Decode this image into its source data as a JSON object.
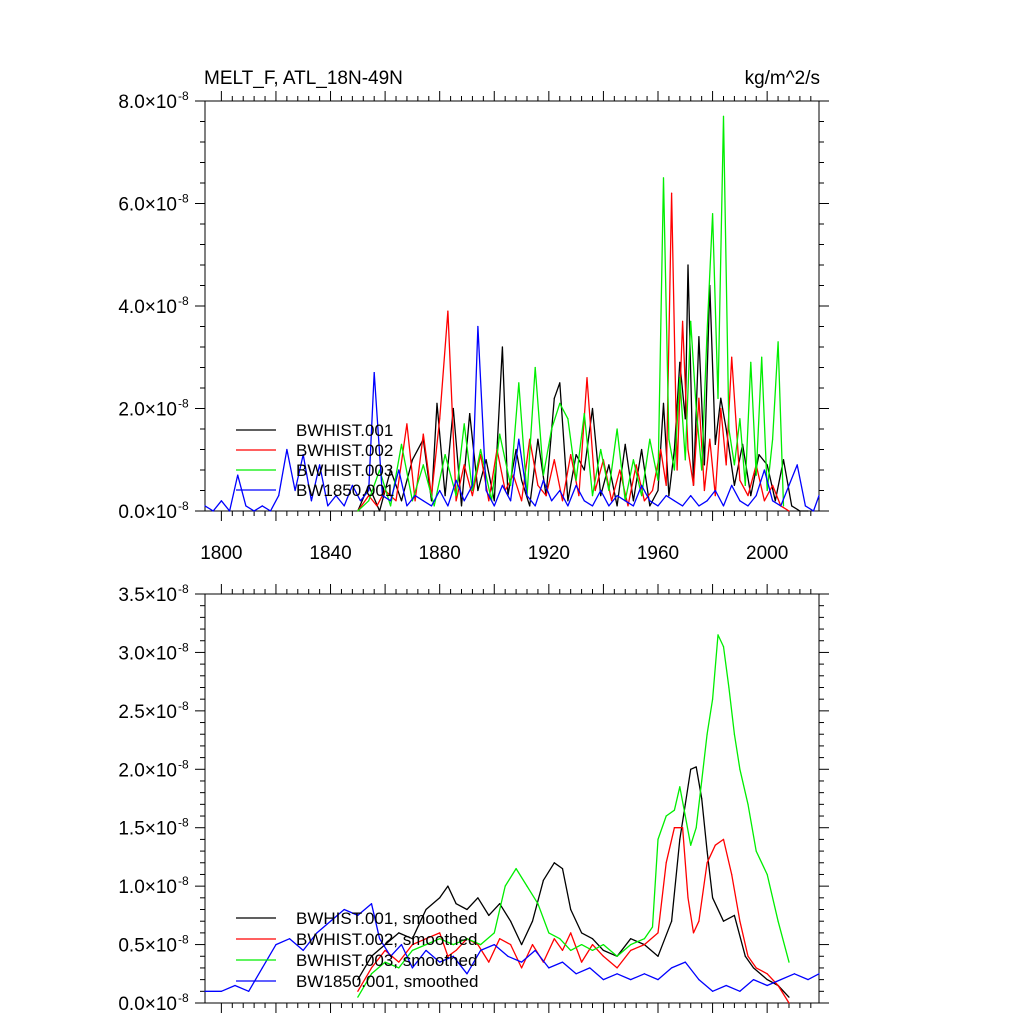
{
  "chart_data": [
    {
      "type": "line",
      "title": "MELT_F, ATL_18N-49N",
      "units": "kg/m^2/s",
      "xlim": [
        1794,
        2019
      ],
      "ylim": [
        0,
        8e-08
      ],
      "x_ticks": [
        1800,
        1840,
        1880,
        1920,
        1960,
        2000
      ],
      "y_ticks": [
        {
          "value": 0.0,
          "label": "0.0",
          "exp": "-8"
        },
        {
          "value": 2e-08,
          "label": "2.0",
          "exp": "-8"
        },
        {
          "value": 4e-08,
          "label": "4.0",
          "exp": "-8"
        },
        {
          "value": 6e-08,
          "label": "6.0",
          "exp": "-8"
        },
        {
          "value": 8e-08,
          "label": "8.0",
          "exp": "-8"
        }
      ],
      "legend_position": "bottom-left",
      "series": [
        {
          "name": "BWHIST.001",
          "color": "#000000",
          "x": [
            1850,
            1854,
            1858,
            1862,
            1866,
            1870,
            1874,
            1877,
            1879,
            1882,
            1885,
            1888,
            1891,
            1894,
            1897,
            1900,
            1903,
            1905,
            1908,
            1910,
            1913,
            1916,
            1919,
            1922,
            1924,
            1927,
            1930,
            1933,
            1936,
            1939,
            1942,
            1945,
            1948,
            1951,
            1954,
            1957,
            1960,
            1962,
            1964,
            1966,
            1968,
            1970,
            1971,
            1973,
            1975,
            1977,
            1979,
            1981,
            1983,
            1985,
            1988,
            1991,
            1994,
            1997,
            2000,
            2003,
            2006,
            2009,
            2012,
            2015
          ],
          "y": [
            0.0,
            5e-09,
            0.0,
            8e-09,
            2e-09,
            1e-08,
            1.4e-08,
            2e-09,
            2.1e-08,
            3e-09,
            2e-08,
            1e-09,
            1.9e-08,
            4e-09,
            1e-08,
            2e-09,
            3.2e-08,
            3e-09,
            1.2e-08,
            6e-09,
            1e-09,
            1.4e-08,
            3e-09,
            2.2e-08,
            2.5e-08,
            2e-09,
            1.1e-08,
            8e-09,
            2e-08,
            3e-09,
            9e-09,
            1e-09,
            1.3e-08,
            2e-09,
            1.2e-08,
            1e-09,
            4e-09,
            2.1e-08,
            3e-09,
            1.2e-08,
            2.9e-08,
            1.8e-08,
            4.8e-08,
            5e-09,
            3.4e-08,
            9e-09,
            4.4e-08,
            1.3e-08,
            2.2e-08,
            1.6e-08,
            5e-09,
            1.3e-08,
            3e-09,
            1.1e-08,
            9e-09,
            2e-09,
            1e-08,
            1e-09,
            0.0,
            0.0
          ]
        },
        {
          "name": "BWHIST.002",
          "color": "#ff0000",
          "x": [
            1850,
            1854,
            1857,
            1860,
            1864,
            1868,
            1871,
            1874,
            1877,
            1880,
            1883,
            1886,
            1889,
            1892,
            1895,
            1898,
            1901,
            1904,
            1907,
            1910,
            1913,
            1916,
            1919,
            1922,
            1925,
            1928,
            1931,
            1934,
            1937,
            1940,
            1943,
            1946,
            1949,
            1952,
            1955,
            1958,
            1961,
            1963,
            1965,
            1967,
            1969,
            1971,
            1973,
            1975,
            1977,
            1979,
            1981,
            1983,
            1985,
            1987,
            1990,
            1993,
            1996,
            1999,
            2002,
            2005,
            2008
          ],
          "y": [
            0.0,
            3e-09,
            1e-09,
            4e-09,
            2e-09,
            1.7e-08,
            2e-09,
            1.5e-08,
            3e-09,
            1.8e-08,
            3.9e-08,
            2e-09,
            9e-09,
            3e-09,
            1.1e-08,
            2e-09,
            1.2e-08,
            4e-09,
            7e-09,
            2e-09,
            1.4e-08,
            5e-09,
            3e-09,
            1e-08,
            2e-09,
            1.1e-08,
            3e-09,
            2.6e-08,
            4e-09,
            1e-08,
            2e-09,
            8e-09,
            1e-09,
            9e-09,
            2e-09,
            4e-09,
            1.2e-08,
            5e-09,
            6.2e-08,
            8e-09,
            3.7e-08,
            1.2e-08,
            5e-09,
            2.2e-08,
            4e-09,
            1.4e-08,
            3e-09,
            2e-08,
            9e-09,
            3e-08,
            6e-09,
            3e-09,
            9e-09,
            2e-09,
            5e-09,
            1e-09,
            0.0
          ]
        },
        {
          "name": "BWHIST.003",
          "color": "#00ee00",
          "x": [
            1850,
            1854,
            1858,
            1862,
            1866,
            1870,
            1874,
            1878,
            1882,
            1886,
            1889,
            1892,
            1895,
            1899,
            1902,
            1906,
            1909,
            1912,
            1915,
            1918,
            1921,
            1924,
            1927,
            1930,
            1933,
            1936,
            1939,
            1942,
            1945,
            1948,
            1951,
            1954,
            1957,
            1960,
            1962,
            1964,
            1966,
            1968,
            1970,
            1972,
            1974,
            1976,
            1978,
            1980,
            1982,
            1984,
            1986,
            1988,
            1990,
            1992,
            1994,
            1996,
            1998,
            2000,
            2002,
            2004,
            2006
          ],
          "y": [
            0.0,
            2e-09,
            8e-09,
            1e-09,
            1.3e-08,
            2e-09,
            9e-09,
            1e-09,
            1.1e-08,
            3e-09,
            1.7e-08,
            4e-09,
            1.2e-08,
            2e-09,
            1.5e-08,
            5e-09,
            2.5e-08,
            3e-09,
            2.8e-08,
            7e-09,
            1.6e-08,
            2.1e-08,
            1.8e-08,
            6e-09,
            1.9e-08,
            3e-09,
            1.2e-08,
            4e-09,
            1.6e-08,
            2e-09,
            1e-08,
            3e-09,
            1.4e-08,
            6e-09,
            6.5e-08,
            1.4e-08,
            8e-09,
            2.6e-08,
            1e-08,
            3.7e-08,
            2e-08,
            8e-09,
            3.5e-08,
            5.8e-08,
            2.2e-08,
            7.7e-08,
            1.6e-08,
            9e-09,
            1.8e-08,
            5e-09,
            2.9e-08,
            7e-09,
            3e-08,
            4e-09,
            1.4e-08,
            3.3e-08,
            1e-09
          ]
        },
        {
          "name": "BW1850.001",
          "color": "#0000ff",
          "x": [
            1794,
            1797,
            1800,
            1803,
            1806,
            1809,
            1812,
            1815,
            1818,
            1821,
            1824,
            1827,
            1830,
            1833,
            1836,
            1839,
            1842,
            1845,
            1848,
            1851,
            1854,
            1856,
            1859,
            1862,
            1865,
            1868,
            1871,
            1874,
            1877,
            1880,
            1883,
            1886,
            1889,
            1892,
            1894,
            1897,
            1900,
            1903,
            1906,
            1909,
            1912,
            1915,
            1918,
            1921,
            1924,
            1927,
            1930,
            1933,
            1936,
            1939,
            1942,
            1945,
            1948,
            1951,
            1954,
            1957,
            1960,
            1963,
            1966,
            1969,
            1972,
            1975,
            1978,
            1981,
            1984,
            1987,
            1990,
            1993,
            1996,
            1999,
            2002,
            2005,
            2008,
            2011,
            2014,
            2017,
            2019
          ],
          "y": [
            1e-09,
            0.0,
            2e-09,
            0.0,
            7e-09,
            1e-09,
            0.0,
            1e-09,
            0.0,
            3e-09,
            1.2e-08,
            4e-09,
            1.1e-08,
            2e-09,
            9e-09,
            1e-09,
            3e-09,
            1e-09,
            5e-09,
            2e-09,
            4e-09,
            2.7e-08,
            3e-09,
            2e-09,
            8e-09,
            1e-09,
            3e-09,
            2e-09,
            1e-09,
            4e-09,
            1e-09,
            6e-09,
            2e-09,
            5e-09,
            3.6e-08,
            4e-09,
            1e-09,
            5e-09,
            2e-09,
            1.4e-08,
            3e-09,
            1e-09,
            6e-09,
            2e-09,
            4e-09,
            1e-09,
            5e-09,
            2e-09,
            1e-09,
            4e-09,
            1e-09,
            3e-09,
            2e-09,
            1e-09,
            5e-09,
            2e-09,
            1e-09,
            3e-09,
            2e-09,
            1e-09,
            3e-09,
            1e-09,
            2e-09,
            4e-09,
            1e-09,
            5e-09,
            2e-09,
            1e-09,
            3e-09,
            8e-09,
            2e-09,
            1e-09,
            5e-09,
            9e-09,
            1e-09,
            0.0,
            3e-09
          ]
        }
      ]
    },
    {
      "type": "line",
      "title": "",
      "xlim": [
        1794,
        2019
      ],
      "ylim": [
        0,
        3.5e-08
      ],
      "y_ticks": [
        {
          "value": 0.0,
          "label": "0.0",
          "exp": "-8"
        },
        {
          "value": 5e-09,
          "label": "0.5",
          "exp": "-8"
        },
        {
          "value": 1e-08,
          "label": "1.0",
          "exp": "-8"
        },
        {
          "value": 1.5e-08,
          "label": "1.5",
          "exp": "-8"
        },
        {
          "value": 2e-08,
          "label": "2.0",
          "exp": "-8"
        },
        {
          "value": 2.5e-08,
          "label": "2.5",
          "exp": "-8"
        },
        {
          "value": 3e-08,
          "label": "3.0",
          "exp": "-8"
        },
        {
          "value": 3.5e-08,
          "label": "3.5",
          "exp": "-8"
        }
      ],
      "legend_position": "bottom-left",
      "series": [
        {
          "name": "BWHIST.001, smoothed",
          "color": "#000000",
          "x": [
            1850,
            1855,
            1860,
            1865,
            1870,
            1875,
            1880,
            1883,
            1886,
            1890,
            1894,
            1898,
            1902,
            1906,
            1910,
            1914,
            1918,
            1922,
            1925,
            1928,
            1932,
            1936,
            1940,
            1945,
            1950,
            1955,
            1960,
            1965,
            1968,
            1970,
            1972,
            1974,
            1976,
            1978,
            1980,
            1984,
            1988,
            1992,
            1995,
            2000,
            2004,
            2008
          ],
          "y": [
            2e-09,
            4e-09,
            5e-09,
            6e-09,
            5.5e-09,
            8e-09,
            9e-09,
            1e-08,
            8.5e-09,
            8e-09,
            9e-09,
            7.5e-09,
            8.5e-09,
            7e-09,
            5e-09,
            7e-09,
            1.05e-08,
            1.2e-08,
            1.15e-08,
            8e-09,
            6e-09,
            5.5e-09,
            4.5e-09,
            4e-09,
            5.5e-09,
            5e-09,
            4e-09,
            7e-09,
            1.4e-08,
            1.7e-08,
            2e-08,
            2.02e-08,
            1.75e-08,
            1.3e-08,
            9e-09,
            7e-09,
            7.5e-09,
            4e-09,
            3e-09,
            2e-09,
            1.5e-09,
            5e-10
          ]
        },
        {
          "name": "BWHIST.002, smoothed",
          "color": "#ff0000",
          "x": [
            1850,
            1855,
            1860,
            1865,
            1870,
            1875,
            1880,
            1883,
            1886,
            1890,
            1894,
            1898,
            1902,
            1906,
            1910,
            1914,
            1918,
            1922,
            1925,
            1928,
            1932,
            1936,
            1940,
            1945,
            1950,
            1955,
            1960,
            1963,
            1966,
            1969,
            1971,
            1973,
            1975,
            1978,
            1981,
            1984,
            1987,
            1990,
            1993,
            1996,
            2000,
            2004,
            2008
          ],
          "y": [
            1e-09,
            3e-09,
            4.5e-09,
            3.5e-09,
            5e-09,
            5.5e-09,
            6e-09,
            4e-09,
            4.5e-09,
            5.5e-09,
            5e-09,
            3.5e-09,
            5.5e-09,
            5e-09,
            3e-09,
            5e-09,
            3.5e-09,
            5.5e-09,
            4.5e-09,
            6e-09,
            3.5e-09,
            5e-09,
            4e-09,
            3e-09,
            4.5e-09,
            5e-09,
            6e-09,
            1.2e-08,
            1.5e-08,
            1.5e-08,
            9e-09,
            6e-09,
            7e-09,
            1.2e-08,
            1.35e-08,
            1.4e-08,
            1.1e-08,
            7e-09,
            4e-09,
            3e-09,
            2.5e-09,
            1.5e-09,
            0.0
          ]
        },
        {
          "name": "BWHIST.003, smoothed",
          "color": "#00ee00",
          "x": [
            1850,
            1855,
            1860,
            1865,
            1870,
            1875,
            1880,
            1885,
            1890,
            1895,
            1900,
            1904,
            1908,
            1912,
            1916,
            1920,
            1924,
            1928,
            1932,
            1936,
            1940,
            1945,
            1950,
            1955,
            1958,
            1960,
            1963,
            1966,
            1968,
            1970,
            1972,
            1974,
            1976,
            1978,
            1980,
            1982,
            1984,
            1986,
            1988,
            1990,
            1993,
            1996,
            2000,
            2004,
            2008
          ],
          "y": [
            5e-10,
            2.5e-09,
            3.5e-09,
            3e-09,
            4.5e-09,
            5e-09,
            5.5e-09,
            5e-09,
            5.5e-09,
            5e-09,
            6e-09,
            1e-08,
            1.15e-08,
            1e-08,
            8.5e-09,
            6e-09,
            5.5e-09,
            4.5e-09,
            5e-09,
            4.5e-09,
            5e-09,
            4e-09,
            5e-09,
            5.5e-09,
            6.5e-09,
            1.4e-08,
            1.6e-08,
            1.65e-08,
            1.85e-08,
            1.6e-08,
            1.35e-08,
            1.5e-08,
            1.9e-08,
            2.3e-08,
            2.6e-08,
            3.15e-08,
            3.05e-08,
            2.7e-08,
            2.3e-08,
            2e-08,
            1.7e-08,
            1.3e-08,
            1.1e-08,
            7e-09,
            3.5e-09
          ]
        },
        {
          "name": "BW1850.001, smoothed",
          "color": "#0000ff",
          "x": [
            1794,
            1800,
            1805,
            1810,
            1815,
            1820,
            1825,
            1830,
            1835,
            1840,
            1845,
            1850,
            1855,
            1858,
            1862,
            1866,
            1870,
            1875,
            1880,
            1885,
            1890,
            1895,
            1900,
            1905,
            1910,
            1915,
            1920,
            1925,
            1930,
            1935,
            1940,
            1945,
            1950,
            1955,
            1960,
            1965,
            1970,
            1975,
            1980,
            1985,
            1990,
            1995,
            2000,
            2005,
            2010,
            2015,
            2019
          ],
          "y": [
            1e-09,
            1e-09,
            1.5e-09,
            1e-09,
            3e-09,
            5e-09,
            5.5e-09,
            4.5e-09,
            6e-09,
            7e-09,
            8e-09,
            7.5e-09,
            8.5e-09,
            5.5e-09,
            4e-09,
            5e-09,
            3e-09,
            4.5e-09,
            3.5e-09,
            4e-09,
            2.5e-09,
            4.5e-09,
            5e-09,
            4e-09,
            3.5e-09,
            4.5e-09,
            3e-09,
            3.5e-09,
            2.5e-09,
            3e-09,
            2e-09,
            2.5e-09,
            2e-09,
            2.5e-09,
            2e-09,
            3e-09,
            3.5e-09,
            2e-09,
            1e-09,
            1.5e-09,
            1e-09,
            2e-09,
            1.5e-09,
            2e-09,
            2.5e-09,
            2e-09,
            2.5e-09
          ]
        }
      ]
    }
  ]
}
